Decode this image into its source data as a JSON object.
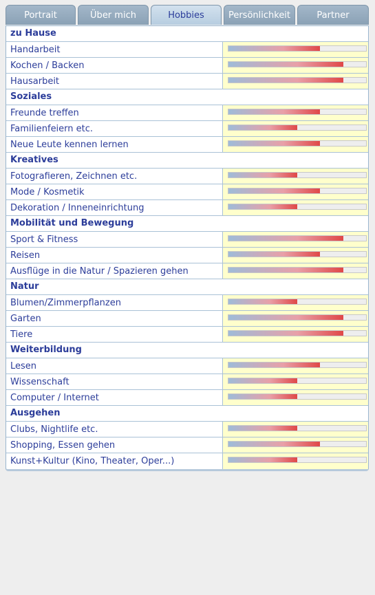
{
  "tabs": [
    "Portrait",
    "Über mich",
    "Hobbies",
    "Persönlichkeit",
    "Partner"
  ],
  "active_tab": 2,
  "scale": [
    0,
    6
  ],
  "sections": [
    {
      "title": "zu Hause",
      "items": [
        {
          "label": "Handarbeit",
          "value": 4
        },
        {
          "label": "Kochen / Backen",
          "value": 5
        },
        {
          "label": "Hausarbeit",
          "value": 5
        }
      ]
    },
    {
      "title": "Soziales",
      "items": [
        {
          "label": "Freunde treffen",
          "value": 4
        },
        {
          "label": "Familienfeiern etc.",
          "value": 3
        },
        {
          "label": "Neue Leute kennen lernen",
          "value": 4
        }
      ]
    },
    {
      "title": "Kreatives",
      "items": [
        {
          "label": "Fotografieren, Zeichnen etc.",
          "value": 3
        },
        {
          "label": "Mode / Kosmetik",
          "value": 4
        },
        {
          "label": "Dekoration / Inneneinrichtung",
          "value": 3
        }
      ]
    },
    {
      "title": "Mobilität und Bewegung",
      "items": [
        {
          "label": "Sport & Fitness",
          "value": 5
        },
        {
          "label": "Reisen",
          "value": 4
        },
        {
          "label": "Ausflüge in die Natur / Spazieren gehen",
          "value": 5
        }
      ]
    },
    {
      "title": "Natur",
      "items": [
        {
          "label": "Blumen/Zimmerpflanzen",
          "value": 3
        },
        {
          "label": "Garten",
          "value": 5
        },
        {
          "label": "Tiere",
          "value": 5
        }
      ]
    },
    {
      "title": "Weiterbildung",
      "items": [
        {
          "label": "Lesen",
          "value": 4
        },
        {
          "label": "Wissenschaft",
          "value": 3
        },
        {
          "label": "Computer / Internet",
          "value": 3
        }
      ]
    },
    {
      "title": "Ausgehen",
      "items": [
        {
          "label": "Clubs, Nightlife etc.",
          "value": 3
        },
        {
          "label": "Shopping, Essen gehen",
          "value": 4
        },
        {
          "label": "Kunst+Kultur (Kino, Theater, Oper...)",
          "value": 3
        }
      ]
    }
  ]
}
